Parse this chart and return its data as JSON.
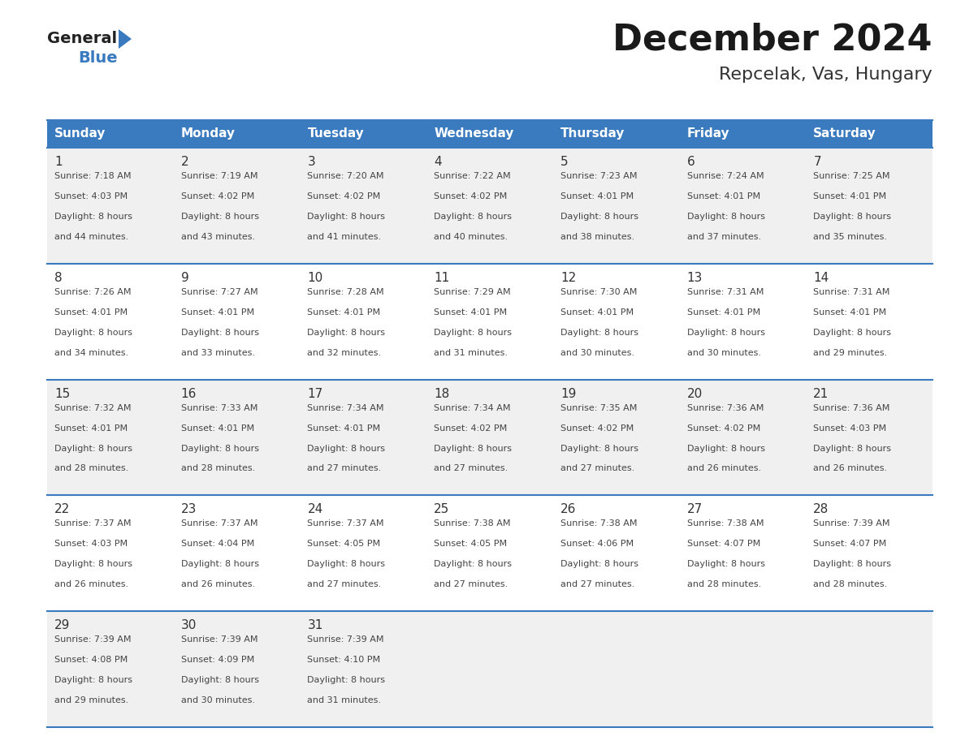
{
  "title": "December 2024",
  "subtitle": "Repcelak, Vas, Hungary",
  "header_bg": "#3a7abf",
  "header_text": "#ffffff",
  "row_bg_odd": "#f0f0f0",
  "row_bg_even": "#ffffff",
  "border_color": "#3a7abf",
  "days_of_week": [
    "Sunday",
    "Monday",
    "Tuesday",
    "Wednesday",
    "Thursday",
    "Friday",
    "Saturday"
  ],
  "calendar": [
    [
      {
        "day": "1",
        "sunrise": "7:18 AM",
        "sunset": "4:03 PM",
        "daylight_l1": "Daylight: 8 hours",
        "daylight_l2": "and 44 minutes."
      },
      {
        "day": "2",
        "sunrise": "7:19 AM",
        "sunset": "4:02 PM",
        "daylight_l1": "Daylight: 8 hours",
        "daylight_l2": "and 43 minutes."
      },
      {
        "day": "3",
        "sunrise": "7:20 AM",
        "sunset": "4:02 PM",
        "daylight_l1": "Daylight: 8 hours",
        "daylight_l2": "and 41 minutes."
      },
      {
        "day": "4",
        "sunrise": "7:22 AM",
        "sunset": "4:02 PM",
        "daylight_l1": "Daylight: 8 hours",
        "daylight_l2": "and 40 minutes."
      },
      {
        "day": "5",
        "sunrise": "7:23 AM",
        "sunset": "4:01 PM",
        "daylight_l1": "Daylight: 8 hours",
        "daylight_l2": "and 38 minutes."
      },
      {
        "day": "6",
        "sunrise": "7:24 AM",
        "sunset": "4:01 PM",
        "daylight_l1": "Daylight: 8 hours",
        "daylight_l2": "and 37 minutes."
      },
      {
        "day": "7",
        "sunrise": "7:25 AM",
        "sunset": "4:01 PM",
        "daylight_l1": "Daylight: 8 hours",
        "daylight_l2": "and 35 minutes."
      }
    ],
    [
      {
        "day": "8",
        "sunrise": "7:26 AM",
        "sunset": "4:01 PM",
        "daylight_l1": "Daylight: 8 hours",
        "daylight_l2": "and 34 minutes."
      },
      {
        "day": "9",
        "sunrise": "7:27 AM",
        "sunset": "4:01 PM",
        "daylight_l1": "Daylight: 8 hours",
        "daylight_l2": "and 33 minutes."
      },
      {
        "day": "10",
        "sunrise": "7:28 AM",
        "sunset": "4:01 PM",
        "daylight_l1": "Daylight: 8 hours",
        "daylight_l2": "and 32 minutes."
      },
      {
        "day": "11",
        "sunrise": "7:29 AM",
        "sunset": "4:01 PM",
        "daylight_l1": "Daylight: 8 hours",
        "daylight_l2": "and 31 minutes."
      },
      {
        "day": "12",
        "sunrise": "7:30 AM",
        "sunset": "4:01 PM",
        "daylight_l1": "Daylight: 8 hours",
        "daylight_l2": "and 30 minutes."
      },
      {
        "day": "13",
        "sunrise": "7:31 AM",
        "sunset": "4:01 PM",
        "daylight_l1": "Daylight: 8 hours",
        "daylight_l2": "and 30 minutes."
      },
      {
        "day": "14",
        "sunrise": "7:31 AM",
        "sunset": "4:01 PM",
        "daylight_l1": "Daylight: 8 hours",
        "daylight_l2": "and 29 minutes."
      }
    ],
    [
      {
        "day": "15",
        "sunrise": "7:32 AM",
        "sunset": "4:01 PM",
        "daylight_l1": "Daylight: 8 hours",
        "daylight_l2": "and 28 minutes."
      },
      {
        "day": "16",
        "sunrise": "7:33 AM",
        "sunset": "4:01 PM",
        "daylight_l1": "Daylight: 8 hours",
        "daylight_l2": "and 28 minutes."
      },
      {
        "day": "17",
        "sunrise": "7:34 AM",
        "sunset": "4:01 PM",
        "daylight_l1": "Daylight: 8 hours",
        "daylight_l2": "and 27 minutes."
      },
      {
        "day": "18",
        "sunrise": "7:34 AM",
        "sunset": "4:02 PM",
        "daylight_l1": "Daylight: 8 hours",
        "daylight_l2": "and 27 minutes."
      },
      {
        "day": "19",
        "sunrise": "7:35 AM",
        "sunset": "4:02 PM",
        "daylight_l1": "Daylight: 8 hours",
        "daylight_l2": "and 27 minutes."
      },
      {
        "day": "20",
        "sunrise": "7:36 AM",
        "sunset": "4:02 PM",
        "daylight_l1": "Daylight: 8 hours",
        "daylight_l2": "and 26 minutes."
      },
      {
        "day": "21",
        "sunrise": "7:36 AM",
        "sunset": "4:03 PM",
        "daylight_l1": "Daylight: 8 hours",
        "daylight_l2": "and 26 minutes."
      }
    ],
    [
      {
        "day": "22",
        "sunrise": "7:37 AM",
        "sunset": "4:03 PM",
        "daylight_l1": "Daylight: 8 hours",
        "daylight_l2": "and 26 minutes."
      },
      {
        "day": "23",
        "sunrise": "7:37 AM",
        "sunset": "4:04 PM",
        "daylight_l1": "Daylight: 8 hours",
        "daylight_l2": "and 26 minutes."
      },
      {
        "day": "24",
        "sunrise": "7:37 AM",
        "sunset": "4:05 PM",
        "daylight_l1": "Daylight: 8 hours",
        "daylight_l2": "and 27 minutes."
      },
      {
        "day": "25",
        "sunrise": "7:38 AM",
        "sunset": "4:05 PM",
        "daylight_l1": "Daylight: 8 hours",
        "daylight_l2": "and 27 minutes."
      },
      {
        "day": "26",
        "sunrise": "7:38 AM",
        "sunset": "4:06 PM",
        "daylight_l1": "Daylight: 8 hours",
        "daylight_l2": "and 27 minutes."
      },
      {
        "day": "27",
        "sunrise": "7:38 AM",
        "sunset": "4:07 PM",
        "daylight_l1": "Daylight: 8 hours",
        "daylight_l2": "and 28 minutes."
      },
      {
        "day": "28",
        "sunrise": "7:39 AM",
        "sunset": "4:07 PM",
        "daylight_l1": "Daylight: 8 hours",
        "daylight_l2": "and 28 minutes."
      }
    ],
    [
      {
        "day": "29",
        "sunrise": "7:39 AM",
        "sunset": "4:08 PM",
        "daylight_l1": "Daylight: 8 hours",
        "daylight_l2": "and 29 minutes."
      },
      {
        "day": "30",
        "sunrise": "7:39 AM",
        "sunset": "4:09 PM",
        "daylight_l1": "Daylight: 8 hours",
        "daylight_l2": "and 30 minutes."
      },
      {
        "day": "31",
        "sunrise": "7:39 AM",
        "sunset": "4:10 PM",
        "daylight_l1": "Daylight: 8 hours",
        "daylight_l2": "and 31 minutes."
      },
      null,
      null,
      null,
      null
    ]
  ],
  "fig_width": 11.88,
  "fig_height": 9.18,
  "dpi": 100,
  "title_fontsize": 32,
  "subtitle_fontsize": 16,
  "header_fontsize": 11,
  "day_num_fontsize": 11,
  "cell_text_fontsize": 8,
  "logo_general_fontsize": 14,
  "logo_blue_fontsize": 14
}
